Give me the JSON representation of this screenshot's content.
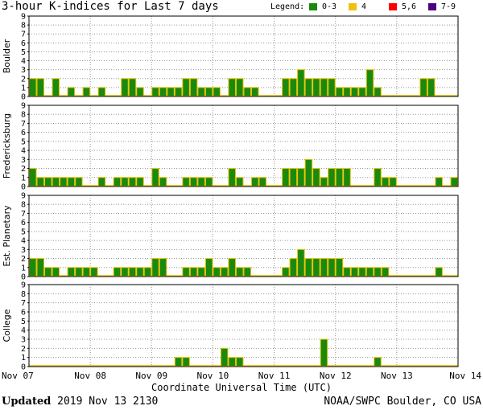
{
  "title": "3-hour K-indices for Last 7 days",
  "legend": {
    "label": "Legend:",
    "items": [
      {
        "text": "0-3",
        "color": "#1a8a0e"
      },
      {
        "text": "4",
        "color": "#f0c010"
      },
      {
        "text": "5,6",
        "color": "#ff0000"
      },
      {
        "text": "7-9",
        "color": "#4b0082"
      }
    ]
  },
  "footer": {
    "updated_label": "Updated",
    "updated_value": "2019 Nov 13 2130",
    "credit": "NOAA/SWPC Boulder, CO USA"
  },
  "chart_data": {
    "type": "bar",
    "xlabel": "Coordinate Universal Time (UTC)",
    "x_tick_labels": [
      "Nov 07",
      "Nov 08",
      "Nov 09",
      "Nov 10",
      "Nov 11",
      "Nov 12",
      "Nov 13",
      "Nov 14"
    ],
    "y_tick_labels": [
      "0",
      "1",
      "2",
      "3",
      "4",
      "5",
      "6",
      "7",
      "8",
      "9"
    ],
    "ylim": [
      0,
      9
    ],
    "grid": true,
    "bar_color": "#1a8a0e",
    "bar_edge_color": "#e8c000",
    "panels": [
      {
        "name": "Boulder",
        "values": [
          2,
          2,
          0,
          2,
          0,
          1,
          0,
          1,
          0,
          1,
          0,
          0,
          2,
          2,
          1,
          0,
          1,
          1,
          1,
          1,
          2,
          2,
          1,
          1,
          1,
          0,
          2,
          2,
          1,
          1,
          0,
          0,
          0,
          2,
          2,
          3,
          2,
          2,
          2,
          2,
          1,
          1,
          1,
          1,
          3,
          1,
          0,
          0,
          0,
          0,
          0,
          2,
          2,
          0,
          0,
          0
        ]
      },
      {
        "name": "Fredericksburg",
        "values": [
          2,
          1,
          1,
          1,
          1,
          1,
          1,
          0,
          0,
          1,
          0,
          1,
          1,
          1,
          1,
          0,
          2,
          1,
          0,
          0,
          1,
          1,
          1,
          1,
          0,
          0,
          2,
          1,
          0,
          1,
          1,
          0,
          0,
          2,
          2,
          2,
          3,
          2,
          1,
          2,
          2,
          2,
          0,
          0,
          0,
          2,
          1,
          1,
          0,
          0,
          0,
          0,
          0,
          1,
          0,
          1,
          0,
          0
        ]
      },
      {
        "name": "Est. Planetary",
        "values": [
          2,
          2,
          1,
          1,
          0,
          1,
          1,
          1,
          1,
          0,
          0,
          1,
          1,
          1,
          1,
          1,
          2,
          2,
          0,
          0,
          1,
          1,
          1,
          2,
          1,
          1,
          2,
          1,
          1,
          0,
          0,
          0,
          0,
          1,
          2,
          3,
          2,
          2,
          2,
          2,
          2,
          1,
          1,
          1,
          1,
          1,
          1,
          0,
          0,
          0,
          0,
          0,
          0,
          1,
          0,
          0
        ]
      },
      {
        "name": "College",
        "values": [
          0,
          0,
          0,
          0,
          0,
          0,
          0,
          0,
          0,
          0,
          0,
          0,
          0,
          0,
          0,
          0,
          0,
          0,
          0,
          1,
          1,
          0,
          0,
          0,
          0,
          2,
          1,
          1,
          0,
          0,
          0,
          0,
          0,
          0,
          0,
          0,
          0,
          0,
          3,
          0,
          0,
          0,
          0,
          0,
          0,
          1,
          0,
          0,
          0,
          0,
          0,
          0,
          0,
          0,
          0,
          0
        ]
      }
    ]
  }
}
